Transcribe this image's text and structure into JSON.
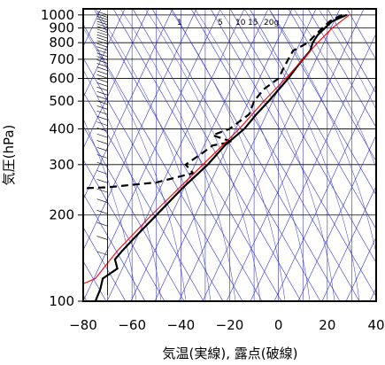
{
  "chart_data": {
    "type": "line",
    "subtype": "skew-t log-p sounding diagram",
    "xlabel": "気温(実線), 露点(破線)",
    "ylabel": "気圧(hPa)",
    "xlim": [
      -80,
      40
    ],
    "ylim": [
      1050,
      100
    ],
    "y_scale": "log",
    "x_ticks": [
      -80,
      -60,
      -40,
      -20,
      0,
      20,
      40
    ],
    "x_tick_labels": [
      "−80",
      "−60",
      "−40",
      "−20",
      "0",
      "20",
      "40"
    ],
    "y_ticks": [
      100,
      200,
      300,
      400,
      500,
      600,
      700,
      800,
      900,
      1000
    ],
    "y_tick_labels": [
      "100",
      "200",
      "300",
      "400",
      "500",
      "600",
      "700",
      "800",
      "900",
      "1000"
    ],
    "mixing_ratio_labels": [
      "1",
      "5",
      "10",
      "15",
      "20g"
    ],
    "grid": true,
    "colors": {
      "temperature": "#000000",
      "dewpoint": "#000000",
      "reference_curve": "#ff0000",
      "isotherms": "#3333cc",
      "adiabats": "#3333cc",
      "grid": "#000000"
    },
    "series": [
      {
        "style": "solid",
        "points": [
          {
            "p": 1000,
            "t": 28
          },
          {
            "p": 950,
            "t": 22
          },
          {
            "p": 900,
            "t": 19
          },
          {
            "p": 850,
            "t": 16
          },
          {
            "p": 800,
            "t": 14
          },
          {
            "p": 750,
            "t": 13
          },
          {
            "p": 700,
            "t": 10
          },
          {
            "p": 650,
            "t": 7
          },
          {
            "p": 600,
            "t": 4
          },
          {
            "p": 500,
            "t": -4
          },
          {
            "p": 450,
            "t": -9
          },
          {
            "p": 400,
            "t": -14
          },
          {
            "p": 350,
            "t": -22
          },
          {
            "p": 300,
            "t": -29
          },
          {
            "p": 250,
            "t": -39
          },
          {
            "p": 200,
            "t": -50
          },
          {
            "p": 170,
            "t": -58
          },
          {
            "p": 150,
            "t": -64
          },
          {
            "p": 140,
            "t": -67
          },
          {
            "p": 130,
            "t": -66
          },
          {
            "p": 120,
            "t": -72
          },
          {
            "p": 110,
            "t": -73
          },
          {
            "p": 100,
            "t": -75
          }
        ]
      },
      {
        "style": "dashed",
        "points": [
          {
            "p": 1000,
            "t": 26
          },
          {
            "p": 950,
            "t": 21
          },
          {
            "p": 900,
            "t": 18
          },
          {
            "p": 850,
            "t": 15
          },
          {
            "p": 800,
            "t": 12
          },
          {
            "p": 750,
            "t": 6
          },
          {
            "p": 700,
            "t": 4
          },
          {
            "p": 650,
            "t": 2
          },
          {
            "p": 600,
            "t": 0
          },
          {
            "p": 550,
            "t": -6
          },
          {
            "p": 500,
            "t": -10
          },
          {
            "p": 450,
            "t": -12
          },
          {
            "p": 400,
            "t": -20
          },
          {
            "p": 380,
            "t": -27
          },
          {
            "p": 360,
            "t": -19
          },
          {
            "p": 350,
            "t": -27
          },
          {
            "p": 330,
            "t": -31
          },
          {
            "p": 300,
            "t": -38
          },
          {
            "p": 280,
            "t": -35
          },
          {
            "p": 260,
            "t": -50
          },
          {
            "p": 250,
            "t": -70
          },
          {
            "p": 248,
            "t": -80
          }
        ]
      },
      {
        "style": "thin-red",
        "points": [
          {
            "p": 1000,
            "t": 29
          },
          {
            "p": 900,
            "t": 22
          },
          {
            "p": 800,
            "t": 16
          },
          {
            "p": 700,
            "t": 10
          },
          {
            "p": 600,
            "t": 3
          },
          {
            "p": 500,
            "t": -6
          },
          {
            "p": 400,
            "t": -16
          },
          {
            "p": 300,
            "t": -31
          },
          {
            "p": 200,
            "t": -52
          },
          {
            "p": 150,
            "t": -66
          },
          {
            "p": 120,
            "t": -75
          },
          {
            "p": 115,
            "t": -80
          }
        ]
      }
    ]
  }
}
